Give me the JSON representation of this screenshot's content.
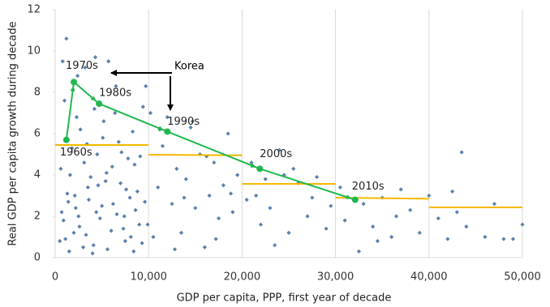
{
  "chart_data": {
    "type": "scatter",
    "xlabel": "GDP per capita, PPP, first year of decade",
    "ylabel": "Real GDP per capita growth during decade",
    "xlim": [
      0,
      50000
    ],
    "ylim": [
      0,
      12
    ],
    "xticks": [
      0,
      {
        "value": 10000,
        "label": "10,000"
      },
      {
        "value": 20000,
        "label": "20,000"
      },
      {
        "value": 30000,
        "label": "30,000"
      },
      {
        "value": 40000,
        "label": "40,000"
      },
      {
        "value": 50000,
        "label": "50,000"
      }
    ],
    "yticks": [
      0,
      2,
      4,
      6,
      8,
      10,
      12
    ],
    "grid": "x",
    "scatter": {
      "color": "#5b80ad",
      "x": [
        1200,
        800,
        4300,
        3200,
        5700,
        2400,
        6500,
        9400,
        10200,
        12000,
        14700,
        9700,
        1000,
        1500,
        2000,
        2500,
        3000,
        3500,
        4000,
        4500,
        5000,
        5500,
        6000,
        7000,
        7500,
        8000,
        8500,
        9000,
        600,
        900,
        1300,
        1800,
        2200,
        2700,
        3300,
        3800,
        4200,
        4800,
        5200,
        6200,
        6800,
        7300,
        7800,
        8300,
        8800,
        9300,
        700,
        1100,
        1600,
        2100,
        2600,
        3100,
        3600,
        4100,
        4600,
        5100,
        5600,
        6100,
        6600,
        7100,
        7600,
        8100,
        8600,
        9100,
        9600,
        500,
        1400,
        2300,
        3400,
        4400,
        5400,
        6400,
        7400,
        8400,
        9900,
        11000,
        11500,
        12500,
        13000,
        13500,
        14000,
        15000,
        15500,
        16000,
        16500,
        17000,
        17500,
        18000,
        18500,
        19000,
        19500,
        10500,
        11200,
        12800,
        13800,
        14500,
        16200,
        17200,
        18800,
        20500,
        21000,
        22000,
        22500,
        23000,
        24000,
        25000,
        26000,
        27000,
        28000,
        29000,
        21500,
        23500,
        25500,
        27500,
        29500,
        24500,
        30500,
        31000,
        32500,
        33000,
        34000,
        35000,
        36000,
        37000,
        38000,
        39000,
        34500,
        36500,
        40000,
        41000,
        42000,
        43000,
        43500,
        44000,
        46000,
        47000,
        48000,
        49000,
        50000,
        42500
      ],
      "values": [
        10.6,
        9.5,
        9.7,
        9.2,
        9.5,
        8.8,
        8.3,
        7.3,
        7.0,
        6.8,
        6.6,
        8.3,
        7.6,
        0.3,
        1.2,
        2.0,
        0.5,
        3.4,
        0.2,
        5.0,
        2.5,
        4.1,
        1.3,
        3.6,
        0.8,
        2.9,
        4.5,
        1.6,
        4.3,
        1.8,
        3.1,
        5.3,
        2.4,
        6.2,
        1.1,
        3.9,
        7.2,
        1.9,
        6.6,
        2.6,
        5.6,
        1.4,
        4.8,
        6.1,
        3.2,
        0.7,
        2.2,
        0.9,
        4.0,
        3.0,
        1.5,
        4.6,
        2.8,
        0.6,
        3.5,
        5.8,
        0.4,
        4.4,
        2.1,
        5.1,
        3.3,
        1.0,
        2.3,
        4.9,
        2.7,
        0.8,
        2.7,
        6.8,
        5.5,
        2.2,
        3.7,
        7.0,
        2.0,
        0.3,
        1.6,
        3.4,
        5.4,
        2.6,
        4.3,
        1.2,
        3.8,
        2.4,
        5.0,
        0.5,
        3.0,
        4.6,
        1.9,
        3.5,
        6.0,
        2.2,
        4.0,
        1.0,
        6.2,
        0.4,
        2.9,
        6.3,
        4.9,
        0.9,
        3.1,
        2.8,
        4.6,
        1.6,
        3.8,
        2.4,
        5.2,
        1.2,
        3.6,
        2.0,
        3.9,
        1.4,
        3.0,
        0.6,
        4.3,
        2.9,
        2.5,
        4.0,
        3.4,
        1.8,
        0.3,
        2.6,
        1.5,
        2.9,
        1.0,
        3.3,
        2.3,
        1.2,
        0.8,
        2.0,
        3.0,
        1.9,
        0.9,
        2.2,
        5.1,
        1.5,
        1.0,
        2.6,
        0.9,
        0.9,
        1.6,
        3.2
      ]
    },
    "segments_color": "#f5b800",
    "segments": [
      {
        "x": [
          0,
          10000
        ],
        "values": [
          5.45,
          5.45
        ]
      },
      {
        "x": [
          10000,
          20000
        ],
        "values": [
          4.98,
          4.95
        ]
      },
      {
        "x": [
          20000,
          30000
        ],
        "values": [
          3.57,
          3.57
        ]
      },
      {
        "x": [
          30000,
          40000
        ],
        "values": [
          2.9,
          2.85
        ]
      },
      {
        "x": [
          40000,
          50000
        ],
        "values": [
          2.43,
          2.43
        ]
      }
    ],
    "korea": {
      "color": "#1fb84f",
      "x": [
        1200,
        2000,
        4700,
        12000,
        21900,
        32100
      ],
      "values": [
        5.7,
        8.5,
        7.45,
        6.1,
        4.3,
        2.8
      ],
      "labels": [
        "1960s",
        "1970s",
        "1980s",
        "1990s",
        "2000s",
        "2010s"
      ]
    },
    "annotation": "Korea"
  }
}
